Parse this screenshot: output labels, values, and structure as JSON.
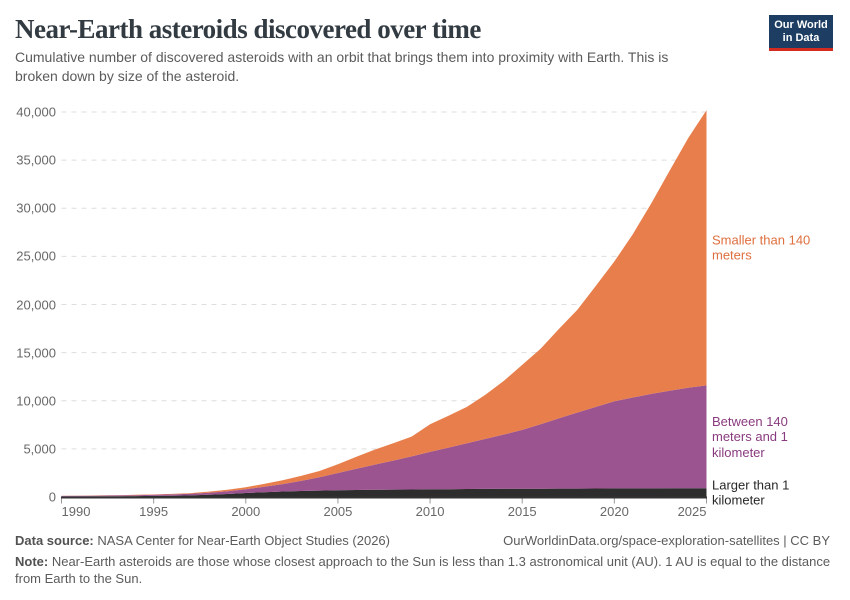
{
  "header": {
    "title": "Near-Earth asteroids discovered over time",
    "subtitle": "Cumulative number of discovered asteroids with an orbit that brings them into proximity with Earth. This is broken down by size of the asteroid.",
    "logo": {
      "line1": "Our World",
      "line2": "in Data",
      "bg_color": "#1d3d63",
      "accent_color": "#d42b21"
    }
  },
  "chart_data": {
    "type": "area",
    "stacked": true,
    "title": "Near-Earth asteroids discovered over time",
    "xlabel": "",
    "ylabel": "",
    "xlim": [
      1990,
      2025
    ],
    "ylim": [
      0,
      40000
    ],
    "grid": "horizontal-dashed",
    "legend_position": "right-edge-labels",
    "x": [
      1990,
      1991,
      1992,
      1993,
      1994,
      1995,
      1996,
      1997,
      1998,
      1999,
      2000,
      2001,
      2002,
      2003,
      2004,
      2005,
      2006,
      2007,
      2008,
      2009,
      2010,
      2011,
      2012,
      2013,
      2014,
      2015,
      2016,
      2017,
      2018,
      2019,
      2020,
      2021,
      2022,
      2023,
      2024,
      2025
    ],
    "series": [
      {
        "name": "Larger than 1 kilometer",
        "color": "#2d2d2d",
        "label_color": "#282828",
        "values": [
          60,
          66,
          72,
          80,
          95,
          115,
          140,
          170,
          230,
          310,
          420,
          500,
          570,
          620,
          665,
          700,
          725,
          745,
          765,
          783,
          800,
          815,
          828,
          838,
          847,
          855,
          863,
          870,
          877,
          884,
          890,
          894,
          897,
          900,
          903,
          905
        ]
      },
      {
        "name": "Between 140 meters and 1 kilometer",
        "color": "#9b5490",
        "label_color": "#8a3b7f",
        "values": [
          55,
          62,
          70,
          82,
          95,
          110,
          130,
          160,
          220,
          290,
          380,
          560,
          770,
          1050,
          1380,
          1790,
          2200,
          2620,
          3020,
          3430,
          3890,
          4320,
          4750,
          5200,
          5650,
          6115,
          6700,
          7320,
          7900,
          8480,
          9050,
          9440,
          9810,
          10140,
          10440,
          10695
        ]
      },
      {
        "name": "Smaller than 140 meters",
        "color": "#e87e4b",
        "label_color": "#df6f3e",
        "values": [
          19,
          22,
          25,
          29,
          34,
          40,
          50,
          70,
          110,
          160,
          220,
          300,
          400,
          520,
          660,
          920,
          1250,
          1560,
          1800,
          2060,
          2870,
          3300,
          3780,
          4580,
          5570,
          6750,
          7840,
          9290,
          10690,
          12590,
          14540,
          16970,
          19790,
          22860,
          25940,
          28590
        ]
      }
    ],
    "y_ticks": [
      {
        "value": 0,
        "label": "0"
      },
      {
        "value": 5000,
        "label": "5,000"
      },
      {
        "value": 10000,
        "label": "10,000"
      },
      {
        "value": 15000,
        "label": "15,000"
      },
      {
        "value": 20000,
        "label": "20,000"
      },
      {
        "value": 25000,
        "label": "25,000"
      },
      {
        "value": 30000,
        "label": "30,000"
      },
      {
        "value": 35000,
        "label": "35,000"
      },
      {
        "value": 40000,
        "label": "40,000"
      }
    ],
    "x_ticks": [
      {
        "value": 1990,
        "label": "1990"
      },
      {
        "value": 1995,
        "label": "1995"
      },
      {
        "value": 2000,
        "label": "2000"
      },
      {
        "value": 2005,
        "label": "2005"
      },
      {
        "value": 2010,
        "label": "2010"
      },
      {
        "value": 2015,
        "label": "2015"
      },
      {
        "value": 2020,
        "label": "2020"
      },
      {
        "value": 2025,
        "label": "2025"
      }
    ]
  },
  "footer": {
    "source_label": "Data source:",
    "source_text": " NASA Center for Near-Earth Object Studies (2026)",
    "credit": "OurWorldinData.org/space-exploration-satellites | CC BY",
    "note_label": "Note:",
    "note_text": " Near-Earth asteroids are those whose closest approach to the Sun is less than 1.3 astronomical unit (AU). 1 AU is equal to the distance from Earth to the Sun."
  }
}
